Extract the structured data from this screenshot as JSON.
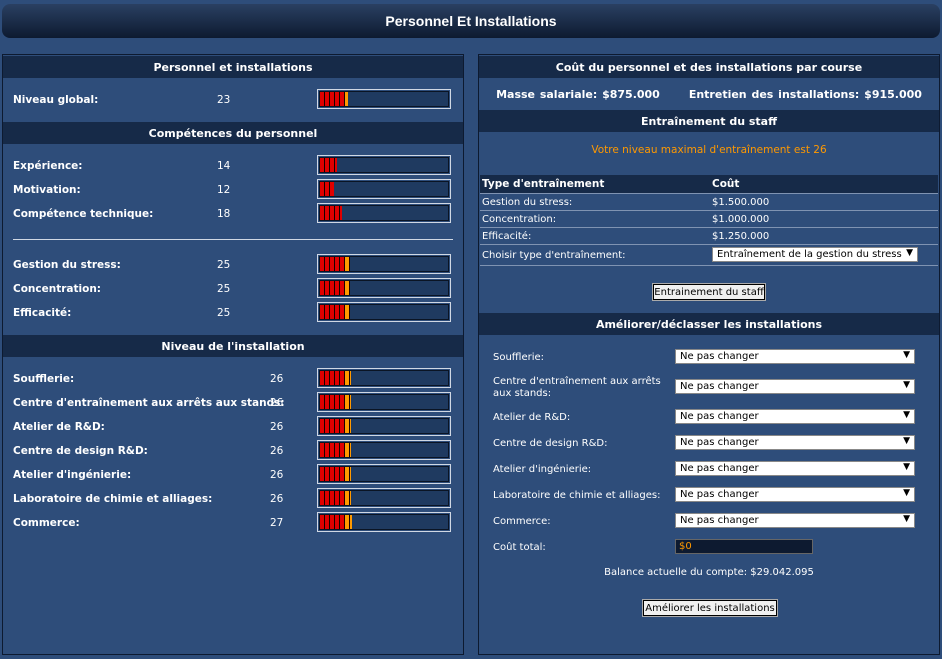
{
  "page": {
    "title": "Personnel Et Installations"
  },
  "left": {
    "personnel_header": "Personnel et installations",
    "global": {
      "label": "Niveau global:",
      "value": "23",
      "level": 23
    },
    "skills_header": "Compétences du personnel",
    "skills": [
      {
        "label": "Expérience:",
        "value": "14",
        "level": 14
      },
      {
        "label": "Motivation:",
        "value": "12",
        "level": 12
      },
      {
        "label": "Compétence technique:",
        "value": "18",
        "level": 18
      }
    ],
    "training_skills": [
      {
        "label": "Gestion du stress:",
        "value": "25",
        "level": 25
      },
      {
        "label": "Concentration:",
        "value": "25",
        "level": 25
      },
      {
        "label": "Efficacité:",
        "value": "25",
        "level": 25
      }
    ],
    "facility_header": "Niveau de l'installation",
    "facilities": [
      {
        "label": "Soufflerie:",
        "value": "26",
        "level": 26
      },
      {
        "label": "Centre d'entraînement aux arrêts aux stands:",
        "value": "26",
        "level": 26
      },
      {
        "label": "Atelier de R&D:",
        "value": "26",
        "level": 26
      },
      {
        "label": "Centre de design R&D:",
        "value": "26",
        "level": 26
      },
      {
        "label": "Atelier d'ingénierie:",
        "value": "26",
        "level": 26
      },
      {
        "label": "Laboratoire de chimie et alliages:",
        "value": "26",
        "level": 26
      },
      {
        "label": "Commerce:",
        "value": "27",
        "level": 27
      }
    ]
  },
  "right": {
    "cost_header": "Coût du personnel et des installations par course",
    "salary_text": "Masse salariale: $875.000",
    "maintenance_text": "Entretien des installations: $915.000",
    "training_header": "Entraînement du staff",
    "max_training_text": "Votre niveau maximal d'entraînement est 26",
    "training_table": {
      "col_type": "Type d'entraînement",
      "col_cost": "Coût",
      "rows": [
        {
          "type": "Gestion du stress:",
          "cost": "$1.500.000"
        },
        {
          "type": "Concentration:",
          "cost": "$1.000.000"
        },
        {
          "type": "Efficacité:",
          "cost": "$1.250.000"
        }
      ],
      "choose_label": "Choisir type d'entraînement:",
      "choose_value": "Entraînement de la gestion du stress"
    },
    "train_button": "Entrainement du staff",
    "upgrade_header": "Améliorer/déclasser les installations",
    "upgrades": [
      {
        "label": "Soufflerie:",
        "value": "Ne pas changer"
      },
      {
        "label": "Centre d'entraînement aux arrêts aux stands:",
        "value": "Ne pas changer"
      },
      {
        "label": "Atelier de R&D:",
        "value": "Ne pas changer"
      },
      {
        "label": "Centre de design R&D:",
        "value": "Ne pas changer"
      },
      {
        "label": "Atelier d'ingénierie:",
        "value": "Ne pas changer"
      },
      {
        "label": "Laboratoire de chimie et alliages:",
        "value": "Ne pas changer"
      },
      {
        "label": "Commerce:",
        "value": "Ne pas changer"
      }
    ],
    "total_label": "Coût total:",
    "total_value": "$0",
    "balance_text": "Balance actuelle du compte: $29.042.095",
    "upgrade_button": "Améliorer les installations"
  },
  "colors": {
    "accent": "#ff9900",
    "panel": "#2e4d7a",
    "header": "#162a48",
    "bar_red": "#e00000",
    "bar_orange": "#ff9900"
  }
}
